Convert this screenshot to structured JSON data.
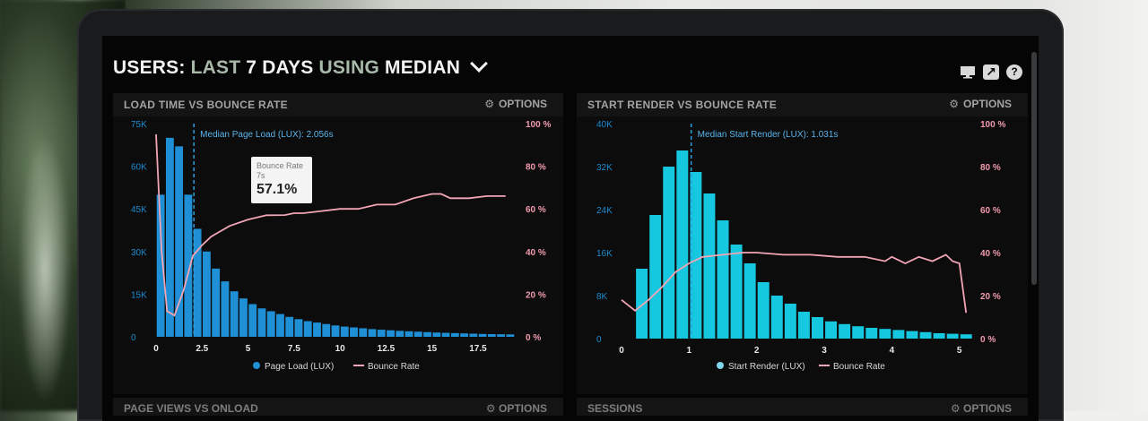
{
  "header": {
    "title_parts": [
      "USERS:",
      "LAST",
      "7 DAYS",
      "USING",
      "MEDIAN"
    ],
    "icons": [
      "monitor-icon",
      "share-icon",
      "help-icon"
    ],
    "share_glyph": "↗",
    "help_glyph": "?"
  },
  "panels": [
    {
      "title": "LOAD TIME VS BOUNCE RATE",
      "options_label": "OPTIONS",
      "median_label": "Median Page Load (LUX): 2.056s",
      "legend": [
        "Page Load (LUX)",
        "Bounce Rate"
      ],
      "tooltip": {
        "line1": "Bounce Rate",
        "line2": "7s",
        "value": "57.1%"
      }
    },
    {
      "title": "START RENDER VS BOUNCE RATE",
      "options_label": "OPTIONS",
      "median_label": "Median Start Render (LUX): 1.031s",
      "legend": [
        "Start Render (LUX)",
        "Bounce Rate"
      ]
    }
  ],
  "bottom_panels": [
    {
      "title": "PAGE VIEWS VS ONLOAD",
      "options_label": "OPTIONS"
    },
    {
      "title": "SESSIONS",
      "options_label": "OPTIONS"
    }
  ],
  "colors": {
    "bar1": "#1f8fd6",
    "bar2": "#16c7e0",
    "line": "#f2a5b5",
    "median": "#2aa0e0"
  },
  "chart_data": [
    {
      "type": "bar",
      "xlim": [
        0,
        19.5
      ],
      "ylim": [
        0,
        75000
      ],
      "y2lim": [
        0,
        100
      ],
      "xticks": [
        "0",
        "2.5",
        "5",
        "7.5",
        "10",
        "12.5",
        "15",
        "17.5"
      ],
      "yticks": [
        "0",
        "15K",
        "30K",
        "45K",
        "60K",
        "75K"
      ],
      "y2ticks": [
        "0 %",
        "20 %",
        "40 %",
        "60 %",
        "80 %",
        "100 %"
      ],
      "median_x": 2.056,
      "bar_width": 0.5,
      "series": [
        {
          "name": "Page Load (LUX)",
          "x": [
            0,
            0.5,
            1,
            1.5,
            2,
            2.5,
            3,
            3.5,
            4,
            4.5,
            5,
            5.5,
            6,
            6.5,
            7,
            7.5,
            8,
            8.5,
            9,
            9.5,
            10,
            10.5,
            11,
            11.5,
            12,
            12.5,
            13,
            13.5,
            14,
            14.5,
            15,
            15.5,
            16,
            16.5,
            17,
            17.5,
            18,
            18.5,
            19
          ],
          "values": [
            50000,
            70000,
            67000,
            50000,
            38000,
            30000,
            24000,
            19500,
            16000,
            13500,
            11500,
            10000,
            9000,
            8000,
            7000,
            6200,
            5500,
            5000,
            4500,
            4000,
            3600,
            3300,
            3000,
            2700,
            2500,
            2300,
            2100,
            1950,
            1800,
            1650,
            1500,
            1400,
            1300,
            1200,
            1100,
            1000,
            950,
            900,
            850
          ]
        },
        {
          "name": "Bounce Rate",
          "axis": "right",
          "x": [
            0,
            0.3,
            0.6,
            1,
            1.5,
            2,
            2.5,
            3,
            4,
            5,
            6,
            7,
            7.5,
            8,
            9,
            10,
            11,
            12,
            13,
            14,
            15,
            15.5,
            16,
            17,
            18,
            19
          ],
          "values": [
            95,
            40,
            12,
            10,
            22,
            38,
            43,
            47,
            52,
            55,
            57,
            57.1,
            58,
            58,
            59,
            60,
            60,
            62,
            62,
            65,
            67,
            67,
            65,
            65,
            66,
            66
          ]
        }
      ]
    },
    {
      "type": "bar",
      "xlim": [
        0,
        5.15
      ],
      "ylim": [
        0,
        40000
      ],
      "y2lim": [
        0,
        100
      ],
      "xticks": [
        "0",
        "1",
        "2",
        "3",
        "4",
        "5"
      ],
      "yticks": [
        "0",
        "8K",
        "16K",
        "24K",
        "32K",
        "40K"
      ],
      "y2ticks": [
        "0 %",
        "20 %",
        "40 %",
        "60 %",
        "80 %",
        "100 %"
      ],
      "median_x": 1.031,
      "bar_width": 0.2,
      "series": [
        {
          "name": "Start Render (LUX)",
          "x": [
            0.2,
            0.4,
            0.6,
            0.8,
            1.0,
            1.2,
            1.4,
            1.6,
            1.8,
            2.0,
            2.2,
            2.4,
            2.6,
            2.8,
            3.0,
            3.2,
            3.4,
            3.6,
            3.8,
            4.0,
            4.2,
            4.4,
            4.6,
            4.8,
            5.0
          ],
          "values": [
            13000,
            23000,
            32000,
            35000,
            31000,
            27000,
            22000,
            17500,
            14000,
            10500,
            8000,
            6500,
            5000,
            4000,
            3200,
            2700,
            2300,
            2000,
            1800,
            1600,
            1400,
            1200,
            1000,
            900,
            800
          ]
        },
        {
          "name": "Bounce Rate",
          "axis": "right",
          "x": [
            0,
            0.2,
            0.4,
            0.6,
            0.8,
            1.0,
            1.2,
            1.5,
            1.8,
            2.0,
            2.4,
            2.8,
            3.2,
            3.6,
            3.9,
            4.0,
            4.2,
            4.4,
            4.6,
            4.8,
            4.9,
            5.0,
            5.1
          ],
          "values": [
            18,
            13,
            18,
            24,
            31,
            35,
            38,
            39,
            40,
            40,
            39,
            39,
            38,
            38,
            36,
            38,
            35,
            38,
            36,
            39,
            36,
            35,
            12
          ]
        }
      ]
    }
  ]
}
